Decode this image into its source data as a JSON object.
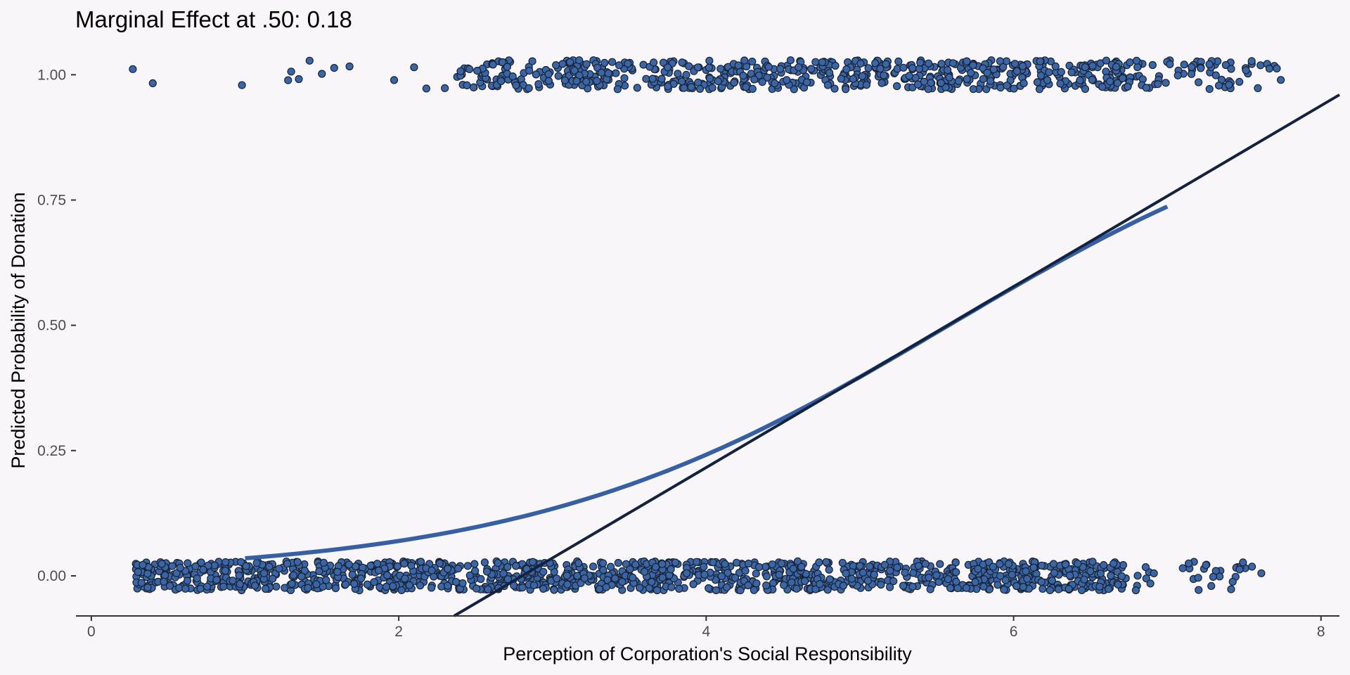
{
  "chart_data": {
    "type": "scatter",
    "title": "Marginal Effect at .50: 0.18",
    "xlabel": "Perception of Corporation's Social Responsibility",
    "ylabel": "Predicted Probability of Donation",
    "xlim": [
      -0.1,
      8.12
    ],
    "ylim": [
      -0.08,
      1.065
    ],
    "x_ticks": [
      0,
      2,
      4,
      6,
      8
    ],
    "x_tick_labels": [
      "0",
      "2",
      "4",
      "6",
      "8"
    ],
    "y_ticks": [
      0,
      0.25,
      0.5,
      0.75,
      1
    ],
    "y_tick_labels": [
      "0.00",
      "0.25",
      "0.50",
      "0.75",
      "1.00"
    ],
    "grid": false,
    "colors": {
      "background": "#f8f6f8",
      "points": "#3a66a8",
      "point_stroke": "#1a2333",
      "logit_curve": "#3760a4",
      "tangent_line": "#13223f",
      "axis": "#333333"
    },
    "series": [
      {
        "kind": "jittered points",
        "groups": [
          {
            "y": 0,
            "x_range": [
              0.25,
              7.75
            ],
            "approx_count": 1300
          },
          {
            "y": 1,
            "x_range": [
              0.25,
              7.75
            ],
            "approx_count": 700
          }
        ]
      },
      {
        "kind": "logistic fit curve",
        "x_range": [
          1.0,
          7.0
        ],
        "points": [
          [
            1.0,
            0.035
          ],
          [
            2.0,
            0.068
          ],
          [
            3.0,
            0.13
          ],
          [
            4.0,
            0.24
          ],
          [
            5.0,
            0.4
          ],
          [
            6.0,
            0.575
          ],
          [
            7.0,
            0.737
          ]
        ]
      },
      {
        "kind": "tangent line",
        "slope": 0.18,
        "x_range": [
          2.36,
          8.12
        ],
        "points": [
          [
            2.36,
            -0.08
          ],
          [
            8.12,
            0.96
          ]
        ]
      }
    ]
  }
}
